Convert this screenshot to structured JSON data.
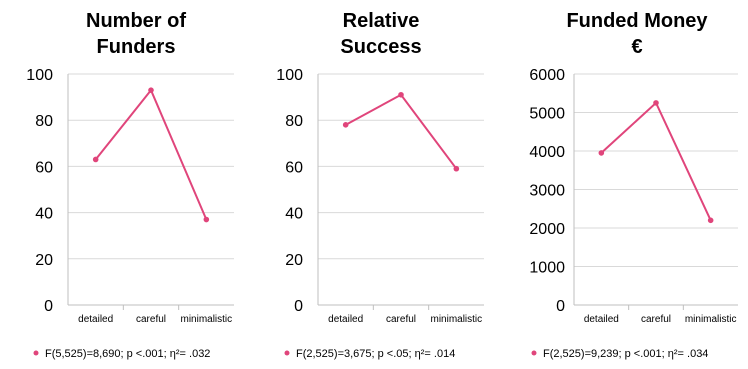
{
  "accent_color": "#e0457b",
  "chart_data": [
    {
      "type": "line",
      "title_lines": [
        "Number of",
        "Funders"
      ],
      "categories": [
        "detailed",
        "careful",
        "minimalistic"
      ],
      "values": [
        63,
        93,
        37
      ],
      "ylim": [
        0,
        100
      ],
      "yticks": [
        "0",
        "20",
        "40",
        "60",
        "80",
        "100"
      ],
      "grid": true,
      "footnote": "F(5,525)=8,690; p <.001; η²= .032"
    },
    {
      "type": "line",
      "title_lines": [
        "Relative",
        "Success"
      ],
      "categories": [
        "detailed",
        "careful",
        "minimalistic"
      ],
      "values": [
        78,
        91,
        59
      ],
      "ylim": [
        0,
        100
      ],
      "yticks": [
        "0",
        "20",
        "40",
        "60",
        "80",
        "100"
      ],
      "grid": true,
      "footnote": "F(2,525)=3,675; p <.05; η²= .014"
    },
    {
      "type": "line",
      "title_lines": [
        "Funded Money",
        "€"
      ],
      "categories": [
        "detailed",
        "careful",
        "minimalistic"
      ],
      "values": [
        3950,
        5250,
        2200
      ],
      "ylim": [
        0,
        6000
      ],
      "yticks": [
        "0",
        "1000",
        "2000",
        "3000",
        "4000",
        "5000",
        "6000"
      ],
      "grid": true,
      "footnote": "F(2,525)=9,239; p <.001; η²= .034"
    }
  ]
}
